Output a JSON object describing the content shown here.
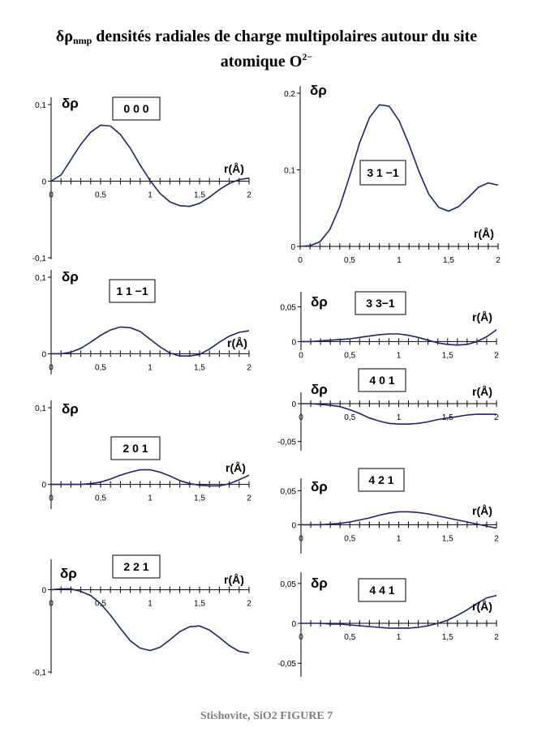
{
  "title": {
    "symbol": "δρ",
    "subscript": "nmp",
    "line1": " densités radiales de charge multipolaires autour du site",
    "line2": "atomique O",
    "superscript": "2−"
  },
  "caption": "Stishovite, SiO2  FIGURE 7",
  "chart_data": [
    {
      "type": "line",
      "box_label": "0 0 0",
      "ylabel": "δρ",
      "xlabel": "r(Å)",
      "xlim": [
        0,
        2
      ],
      "ylim": [
        -0.1,
        0.1
      ],
      "x_ticks": [
        "0",
        "0,5",
        "1",
        "1,5",
        "2"
      ],
      "y_ticks": [
        "0,1",
        "0",
        "-0,1"
      ],
      "x": [
        0,
        0.1,
        0.2,
        0.3,
        0.4,
        0.5,
        0.6,
        0.7,
        0.8,
        0.9,
        1.0,
        1.1,
        1.2,
        1.3,
        1.4,
        1.5,
        1.6,
        1.7,
        1.8,
        1.9,
        2.0
      ],
      "y": [
        0,
        0.008,
        0.028,
        0.048,
        0.064,
        0.073,
        0.072,
        0.061,
        0.043,
        0.021,
        0.001,
        -0.016,
        -0.027,
        -0.032,
        -0.033,
        -0.029,
        -0.021,
        -0.011,
        -0.003,
        0.002,
        0.004
      ]
    },
    {
      "type": "line",
      "box_label": "1 1 −1",
      "ylabel": "δρ",
      "xlabel": "r(Å)",
      "xlim": [
        0,
        2
      ],
      "ylim": [
        -0.025,
        0.1
      ],
      "x_ticks": [
        "0",
        "0,5",
        "1",
        "1,5",
        "2"
      ],
      "y_ticks": [
        "0,1",
        "0"
      ],
      "x": [
        0,
        0.1,
        0.2,
        0.3,
        0.4,
        0.5,
        0.6,
        0.7,
        0.8,
        0.9,
        1.0,
        1.1,
        1.2,
        1.3,
        1.4,
        1.5,
        1.6,
        1.7,
        1.8,
        1.9,
        2.0
      ],
      "y": [
        0,
        0,
        0.002,
        0.007,
        0.015,
        0.024,
        0.031,
        0.035,
        0.034,
        0.029,
        0.019,
        0.009,
        0.001,
        -0.003,
        -0.003,
        -0.001,
        0.006,
        0.015,
        0.023,
        0.028,
        0.03
      ]
    },
    {
      "type": "line",
      "box_label": "2 0 1",
      "ylabel": "δρ",
      "xlabel": "r(Å)",
      "xlim": [
        0,
        2
      ],
      "ylim": [
        -0.03,
        0.1
      ],
      "x_ticks": [
        "0",
        "0,5",
        "1",
        "1,5",
        "2"
      ],
      "y_ticks": [
        "0,1",
        "0"
      ],
      "x": [
        0,
        0.1,
        0.2,
        0.3,
        0.4,
        0.5,
        0.6,
        0.7,
        0.8,
        0.9,
        1.0,
        1.1,
        1.2,
        1.3,
        1.4,
        1.5,
        1.6,
        1.7,
        1.8,
        1.9,
        2.0
      ],
      "y": [
        0,
        0,
        0,
        0,
        0.001,
        0.003,
        0.007,
        0.012,
        0.016,
        0.019,
        0.019,
        0.016,
        0.011,
        0.005,
        0.001,
        -0.001,
        -0.002,
        -0.002,
        0.001,
        0.006,
        0.012
      ]
    },
    {
      "type": "line",
      "box_label": "2 2 1",
      "ylabel": "δρ",
      "xlabel": "r(Å)",
      "xlim": [
        0,
        2
      ],
      "ylim": [
        -0.1,
        0.04
      ],
      "x_ticks": [
        "0",
        "0,5",
        "1",
        "1,5",
        "2"
      ],
      "y_ticks": [
        "0",
        "-0,1"
      ],
      "x": [
        0,
        0.1,
        0.2,
        0.3,
        0.4,
        0.5,
        0.6,
        0.7,
        0.8,
        0.9,
        1.0,
        1.1,
        1.2,
        1.3,
        1.4,
        1.5,
        1.6,
        1.7,
        1.8,
        1.9,
        2.0
      ],
      "y": [
        0,
        0.001,
        0.001,
        -0.002,
        -0.007,
        -0.017,
        -0.031,
        -0.047,
        -0.062,
        -0.071,
        -0.074,
        -0.07,
        -0.061,
        -0.051,
        -0.045,
        -0.044,
        -0.049,
        -0.058,
        -0.068,
        -0.075,
        -0.077
      ]
    },
    {
      "type": "line",
      "box_label": "3 1 −1",
      "ylabel": "δρ",
      "xlabel": "r(Å)",
      "xlim": [
        0,
        2
      ],
      "ylim": [
        0,
        0.2
      ],
      "x_ticks": [
        "0",
        "0,5",
        "1",
        "1,5",
        "2"
      ],
      "y_ticks": [
        "0,2",
        "0,1",
        "0"
      ],
      "x": [
        0,
        0.1,
        0.2,
        0.3,
        0.4,
        0.5,
        0.6,
        0.7,
        0.8,
        0.9,
        1.0,
        1.1,
        1.2,
        1.3,
        1.4,
        1.5,
        1.6,
        1.7,
        1.8,
        1.9,
        2.0
      ],
      "y": [
        0,
        0.001,
        0.006,
        0.022,
        0.052,
        0.092,
        0.135,
        0.168,
        0.185,
        0.183,
        0.164,
        0.133,
        0.098,
        0.068,
        0.051,
        0.046,
        0.052,
        0.064,
        0.077,
        0.083,
        0.08
      ]
    },
    {
      "type": "line",
      "box_label": "3 3−1",
      "ylabel": "δρ",
      "xlabel": "r(Å)",
      "xlim": [
        0,
        2
      ],
      "ylim": [
        -0.01,
        0.06
      ],
      "x_ticks": [
        "0",
        "0,5",
        "1",
        "1,5",
        "2"
      ],
      "y_ticks": [
        "0,05",
        "0"
      ],
      "x": [
        0,
        0.1,
        0.2,
        0.3,
        0.4,
        0.5,
        0.6,
        0.7,
        0.8,
        0.9,
        1.0,
        1.1,
        1.2,
        1.3,
        1.4,
        1.5,
        1.6,
        1.7,
        1.8,
        1.9,
        2.0
      ],
      "y": [
        0,
        0,
        0.001,
        0.002,
        0.003,
        0.004,
        0.006,
        0.008,
        0.01,
        0.011,
        0.011,
        0.009,
        0.006,
        0.002,
        -0.002,
        -0.004,
        -0.005,
        -0.004,
        0,
        0.007,
        0.017
      ]
    },
    {
      "type": "line",
      "box_label": "4 0 1",
      "ylabel": "δρ",
      "xlabel": "r(Å)",
      "xlim": [
        0,
        2
      ],
      "ylim": [
        -0.06,
        0.015
      ],
      "x_ticks": [
        "0",
        "0,5",
        "1",
        "1,5",
        "2"
      ],
      "y_ticks": [
        "0",
        "-0,05"
      ],
      "x": [
        0,
        0.1,
        0.2,
        0.3,
        0.4,
        0.5,
        0.6,
        0.7,
        0.8,
        0.9,
        1.0,
        1.1,
        1.2,
        1.3,
        1.4,
        1.5,
        1.6,
        1.7,
        1.8,
        1.9,
        2.0
      ],
      "y": [
        0,
        0,
        -0.001,
        -0.002,
        -0.004,
        -0.008,
        -0.013,
        -0.019,
        -0.023,
        -0.026,
        -0.027,
        -0.027,
        -0.026,
        -0.024,
        -0.021,
        -0.019,
        -0.017,
        -0.015,
        -0.014,
        -0.014,
        -0.014
      ]
    },
    {
      "type": "line",
      "box_label": "4 2 1",
      "ylabel": "δρ",
      "xlabel": "r(Å)",
      "xlim": [
        0,
        2
      ],
      "ylim": [
        -0.04,
        0.06
      ],
      "x_ticks": [
        "0",
        "0,5",
        "1",
        "1,5",
        "2"
      ],
      "y_ticks": [
        "0,05",
        "0"
      ],
      "x": [
        0,
        0.1,
        0.2,
        0.3,
        0.4,
        0.5,
        0.6,
        0.7,
        0.8,
        0.9,
        1.0,
        1.1,
        1.2,
        1.3,
        1.4,
        1.5,
        1.6,
        1.7,
        1.8,
        1.9,
        2.0
      ],
      "y": [
        0,
        0,
        0,
        0.001,
        0.002,
        0.004,
        0.007,
        0.01,
        0.014,
        0.017,
        0.019,
        0.019,
        0.018,
        0.016,
        0.013,
        0.01,
        0.007,
        0.004,
        0.001,
        -0.002,
        -0.005
      ]
    },
    {
      "type": "line",
      "box_label": "4 4 1",
      "ylabel": "δρ",
      "xlabel": "r(Å)",
      "xlim": [
        0,
        2
      ],
      "ylim": [
        -0.065,
        0.06
      ],
      "x_ticks": [
        "0",
        "0,5",
        "1",
        "1,5",
        "2"
      ],
      "y_ticks": [
        "0,05",
        "0",
        "-0,05"
      ],
      "x": [
        0,
        0.1,
        0.2,
        0.3,
        0.4,
        0.5,
        0.6,
        0.7,
        0.8,
        0.9,
        1.0,
        1.1,
        1.2,
        1.3,
        1.4,
        1.5,
        1.6,
        1.7,
        1.8,
        1.9,
        2.0
      ],
      "y": [
        0,
        0,
        0,
        -0.001,
        -0.001,
        -0.002,
        -0.003,
        -0.004,
        -0.005,
        -0.006,
        -0.006,
        -0.006,
        -0.005,
        -0.003,
        0,
        0.004,
        0.01,
        0.017,
        0.025,
        0.032,
        0.035
      ]
    }
  ]
}
